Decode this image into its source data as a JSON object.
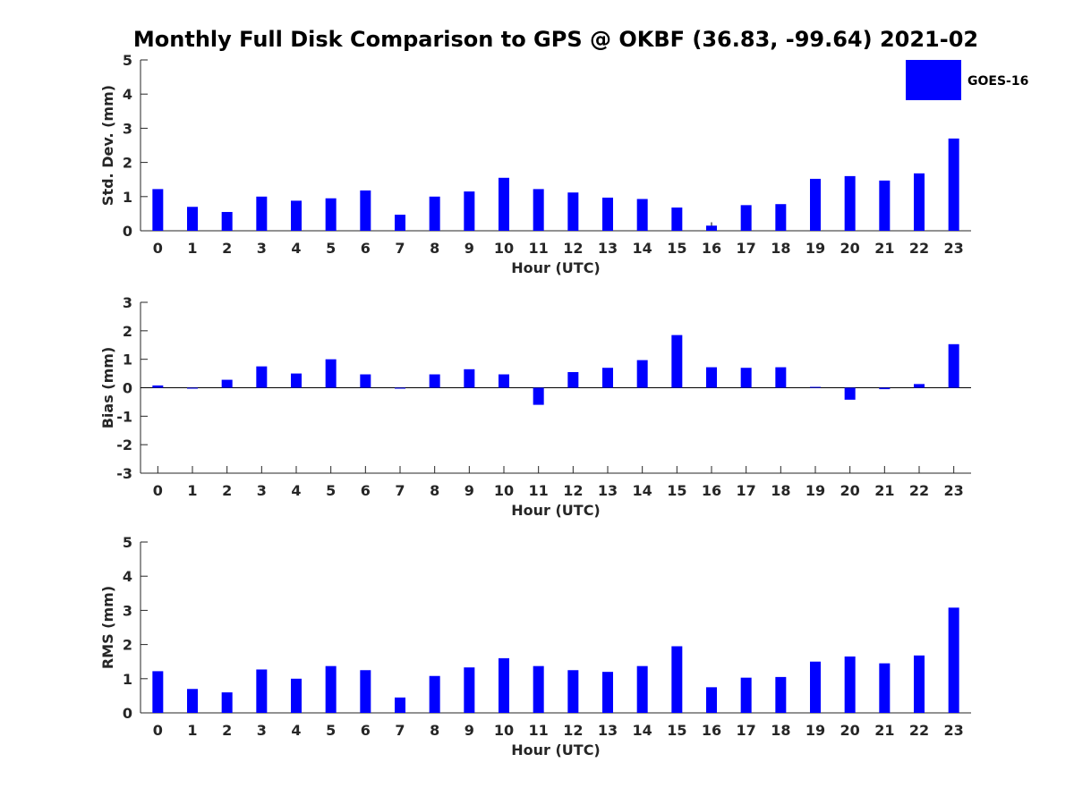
{
  "title": "Monthly Full Disk Comparison to GPS @ OKBF (36.83, -99.64) 2021-02",
  "legend": {
    "label": "GOES-16",
    "color": "#0000FF"
  },
  "chart_data": [
    {
      "type": "bar",
      "ylabel": "Std. Dev. (mm)",
      "xlabel": "Hour (UTC)",
      "ylim": [
        0,
        5
      ],
      "yticks": [
        0,
        1,
        2,
        3,
        4,
        5
      ],
      "categories": [
        "0",
        "1",
        "2",
        "3",
        "4",
        "5",
        "6",
        "7",
        "8",
        "9",
        "10",
        "11",
        "12",
        "13",
        "14",
        "15",
        "16",
        "17",
        "18",
        "19",
        "20",
        "21",
        "22",
        "23"
      ],
      "series": [
        {
          "name": "GOES-16",
          "values": [
            1.22,
            0.7,
            0.55,
            1.0,
            0.88,
            0.95,
            1.18,
            0.47,
            1.0,
            1.15,
            1.55,
            1.22,
            1.12,
            0.97,
            0.93,
            0.68,
            0.15,
            0.75,
            0.78,
            1.52,
            1.6,
            1.47,
            1.68,
            2.7
          ]
        }
      ],
      "error_bars": [
        {
          "category": "16",
          "value": 0.25
        }
      ]
    },
    {
      "type": "bar",
      "ylabel": "Bias (mm)",
      "xlabel": "Hour (UTC)",
      "ylim": [
        -3,
        3
      ],
      "yticks": [
        -3,
        -2,
        -1,
        0,
        1,
        2,
        3
      ],
      "zero_line": true,
      "categories": [
        "0",
        "1",
        "2",
        "3",
        "4",
        "5",
        "6",
        "7",
        "8",
        "9",
        "10",
        "11",
        "12",
        "13",
        "14",
        "15",
        "16",
        "17",
        "18",
        "19",
        "20",
        "21",
        "22",
        "23"
      ],
      "series": [
        {
          "name": "GOES-16",
          "values": [
            0.08,
            -0.02,
            0.28,
            0.75,
            0.5,
            1.0,
            0.47,
            0.0,
            0.47,
            0.65,
            0.47,
            -0.6,
            0.55,
            0.7,
            0.97,
            1.85,
            0.72,
            0.7,
            0.72,
            0.03,
            -0.42,
            -0.05,
            0.13,
            1.53
          ]
        }
      ]
    },
    {
      "type": "bar",
      "ylabel": "RMS (mm)",
      "xlabel": "Hour (UTC)",
      "ylim": [
        0,
        5
      ],
      "yticks": [
        0,
        1,
        2,
        3,
        4,
        5
      ],
      "categories": [
        "0",
        "1",
        "2",
        "3",
        "4",
        "5",
        "6",
        "7",
        "8",
        "9",
        "10",
        "11",
        "12",
        "13",
        "14",
        "15",
        "16",
        "17",
        "18",
        "19",
        "20",
        "21",
        "22",
        "23"
      ],
      "series": [
        {
          "name": "GOES-16",
          "values": [
            1.22,
            0.7,
            0.6,
            1.27,
            1.0,
            1.37,
            1.25,
            0.45,
            1.08,
            1.33,
            1.6,
            1.37,
            1.25,
            1.2,
            1.37,
            1.95,
            0.75,
            1.03,
            1.05,
            1.5,
            1.65,
            1.45,
            1.68,
            3.08
          ]
        }
      ]
    }
  ]
}
